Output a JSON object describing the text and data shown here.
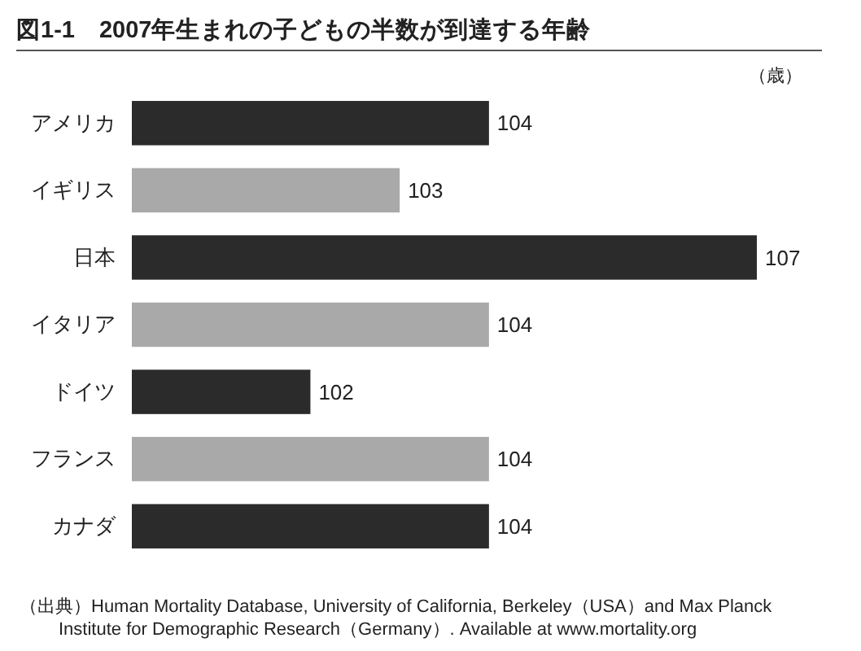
{
  "chart_data": {
    "type": "bar",
    "orientation": "horizontal",
    "title": "図1-1　2007年生まれの子どもの半数が到達する年齢",
    "xlabel": "（歳）",
    "categories": [
      "アメリカ",
      "イギリス",
      "日本",
      "イタリア",
      "ドイツ",
      "フランス",
      "カナダ"
    ],
    "values": [
      104,
      103,
      107,
      104,
      102,
      104,
      104
    ],
    "colors": [
      "#2b2b2b",
      "#a9a9a9",
      "#2b2b2b",
      "#a9a9a9",
      "#2b2b2b",
      "#a9a9a9",
      "#2b2b2b"
    ],
    "xlim": [
      100,
      107
    ],
    "data_labels": true,
    "tick_labels": "y",
    "annotations": [
      "（出典）Human Mortality Database, University of California, Berkeley（USA）and Max Planck Institute for Demographic Research（Germany）. Available at www.mortality.org"
    ]
  }
}
